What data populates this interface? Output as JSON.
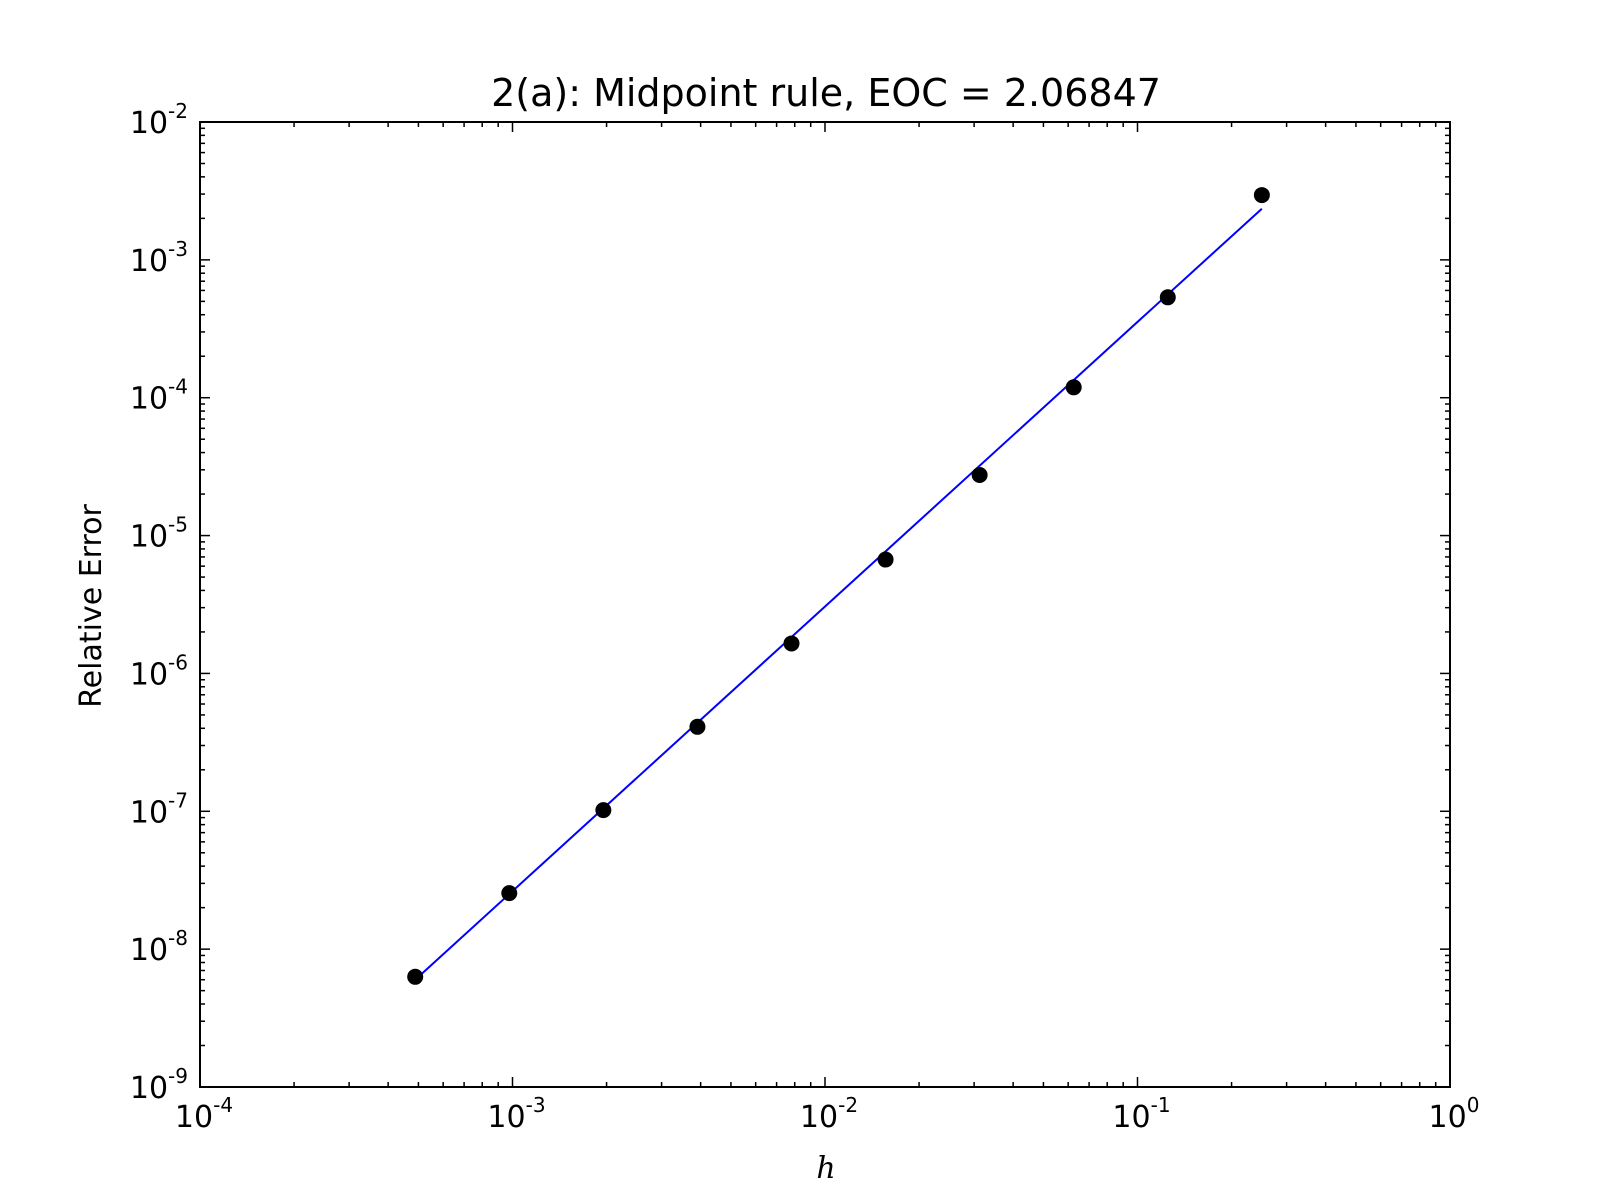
{
  "chart_data": {
    "type": "scatter",
    "title": "2(a): Midpoint rule, EOC = 2.06847",
    "xlabel": "h",
    "ylabel": "Relative Error",
    "xscale": "log",
    "yscale": "log",
    "xlim": [
      0.0001,
      1
    ],
    "ylim": [
      1e-09,
      0.01
    ],
    "x_ticks": [
      {
        "base": "10",
        "exp": "-4",
        "value": 0.0001
      },
      {
        "base": "10",
        "exp": "-3",
        "value": 0.001
      },
      {
        "base": "10",
        "exp": "-2",
        "value": 0.01
      },
      {
        "base": "10",
        "exp": "-1",
        "value": 0.1
      },
      {
        "base": "10",
        "exp": "0",
        "value": 1
      }
    ],
    "y_ticks": [
      {
        "base": "10",
        "exp": "-9",
        "value": 1e-09
      },
      {
        "base": "10",
        "exp": "-8",
        "value": 1e-08
      },
      {
        "base": "10",
        "exp": "-7",
        "value": 1e-07
      },
      {
        "base": "10",
        "exp": "-6",
        "value": 1e-06
      },
      {
        "base": "10",
        "exp": "-5",
        "value": 1e-05
      },
      {
        "base": "10",
        "exp": "-4",
        "value": 0.0001
      },
      {
        "base": "10",
        "exp": "-3",
        "value": 0.001
      },
      {
        "base": "10",
        "exp": "-2",
        "value": 0.01
      }
    ],
    "grid": false,
    "series": [
      {
        "kind": "markers",
        "color": "#000000",
        "x": [
          0.00048828125,
          0.0009765625,
          0.001953125,
          0.00390625,
          0.0078125,
          0.015625,
          0.03125,
          0.0625,
          0.125,
          0.25
        ],
        "y": [
          6.3e-09,
          2.55e-08,
          1.02e-07,
          4.1e-07,
          1.65e-06,
          6.7e-06,
          2.75e-05,
          0.000119,
          0.000535,
          0.00295
        ]
      },
      {
        "kind": "line",
        "color": "#0000ff",
        "x": [
          0.00048828125,
          0.25
        ],
        "y": [
          6e-09,
          0.00235
        ]
      }
    ]
  }
}
